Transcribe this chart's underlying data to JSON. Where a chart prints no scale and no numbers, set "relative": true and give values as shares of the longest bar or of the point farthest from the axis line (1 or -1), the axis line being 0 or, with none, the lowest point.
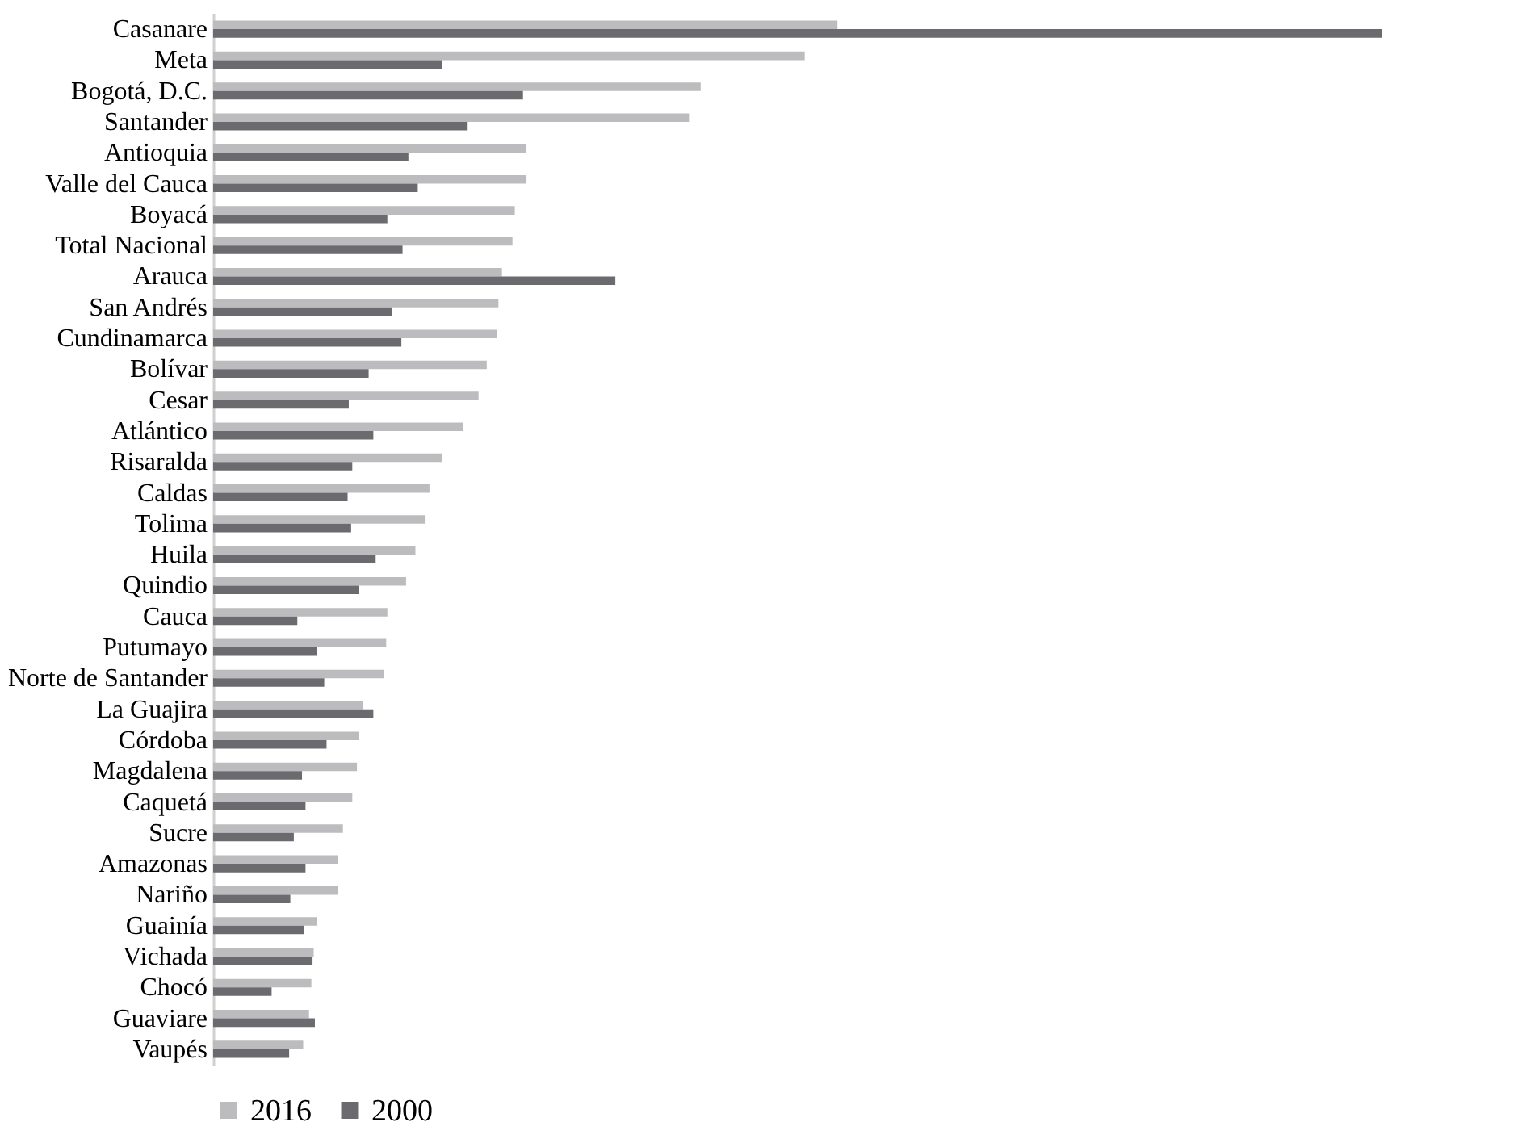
{
  "chart_data": {
    "type": "bar",
    "orientation": "horizontal",
    "relative": true,
    "legend": "bottom",
    "categories": [
      "Casanare",
      "Meta",
      "Bogotá, D.C.",
      "Santander",
      "Antioquia",
      "Valle del Cauca",
      "Boyacá",
      "Total Nacional",
      "Arauca",
      "San Andrés",
      "Cundinamarca",
      "Bolívar",
      "Cesar",
      "Atlántico",
      "Risaralda",
      "Caldas",
      "Tolima",
      "Huila",
      "Quindio",
      "Cauca",
      "Putumayo",
      "Norte de Santander",
      "La Guajira",
      "Córdoba",
      "Magdalena",
      "Caquetá",
      "Sucre",
      "Amazonas",
      "Nariño",
      "Guainía",
      "Vichada",
      "Chocó",
      "Guaviare",
      "Vaupés"
    ],
    "series": [
      {
        "name": "2016",
        "color": "#bcbcbe",
        "values": [
          0.534,
          0.506,
          0.417,
          0.407,
          0.268,
          0.268,
          0.258,
          0.256,
          0.247,
          0.244,
          0.243,
          0.234,
          0.227,
          0.214,
          0.196,
          0.185,
          0.181,
          0.173,
          0.165,
          0.149,
          0.148,
          0.146,
          0.128,
          0.125,
          0.123,
          0.119,
          0.111,
          0.107,
          0.107,
          0.089,
          0.086,
          0.084,
          0.082,
          0.077
        ]
      },
      {
        "name": "2000",
        "color": "#6b6a6e",
        "values": [
          1,
          0.196,
          0.265,
          0.217,
          0.167,
          0.175,
          0.149,
          0.162,
          0.344,
          0.153,
          0.161,
          0.133,
          0.116,
          0.137,
          0.119,
          0.115,
          0.118,
          0.139,
          0.125,
          0.072,
          0.089,
          0.095,
          0.137,
          0.097,
          0.076,
          0.079,
          0.069,
          0.079,
          0.066,
          0.078,
          0.085,
          0.05,
          0.087,
          0.065
        ]
      }
    ]
  }
}
